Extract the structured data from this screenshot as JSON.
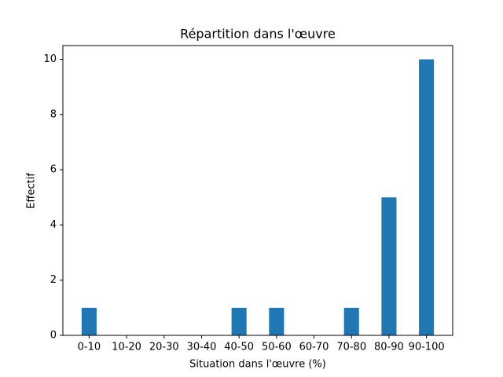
{
  "chart_data": {
    "type": "bar",
    "title": "Répartition dans l'œuvre",
    "x_label": "Situation dans l'œuvre (%)",
    "y_label": "Effectif",
    "categories": [
      "0-10",
      "10-20",
      "20-30",
      "30-40",
      "40-50",
      "50-60",
      "60-70",
      "70-80",
      "80-90",
      "90-100"
    ],
    "values": [
      1,
      0,
      0,
      0,
      1,
      1,
      0,
      1,
      5,
      10
    ],
    "color": "#1f77b4",
    "ylim": [
      0,
      10.5
    ],
    "yticks": [
      0,
      2,
      4,
      6,
      8,
      10
    ],
    "grid": false
  }
}
